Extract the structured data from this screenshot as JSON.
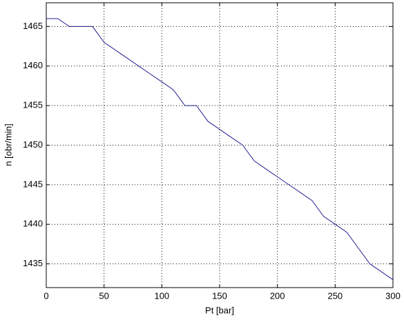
{
  "chart_data": {
    "type": "line",
    "x_label": "Pt [bar]",
    "y_label": "n [obr/min]",
    "x": [
      0,
      10,
      20,
      40,
      50,
      60,
      70,
      80,
      90,
      100,
      110,
      120,
      130,
      140,
      150,
      160,
      170,
      180,
      190,
      200,
      210,
      220,
      230,
      240,
      250,
      260,
      270,
      280,
      290,
      300
    ],
    "series": [
      {
        "color": "#1f1f8f",
        "values": [
          1466,
          1466,
          1465,
          1465,
          1463,
          1462,
          1461,
          1460,
          1459,
          1458,
          1457,
          1455,
          1455,
          1453,
          1452,
          1451,
          1450,
          1448,
          1447,
          1446,
          1445,
          1444,
          1443,
          1441,
          1440,
          1439,
          1437,
          1435,
          1434,
          1433
        ]
      }
    ],
    "xlim": [
      0,
      300
    ],
    "xticks": [
      0,
      50,
      100,
      150,
      200,
      250,
      300
    ],
    "ylim": [
      1432,
      1468
    ],
    "yticks": [
      1435,
      1440,
      1445,
      1450,
      1455,
      1460,
      1465
    ],
    "grid": true
  }
}
